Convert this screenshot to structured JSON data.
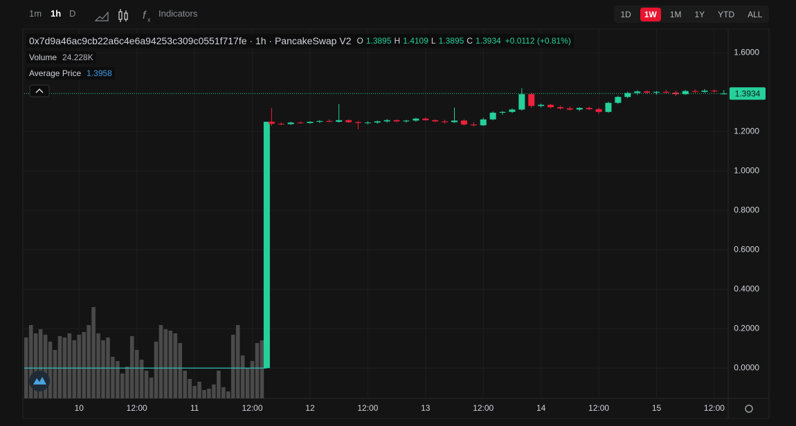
{
  "toolbar": {
    "intervals": [
      "1m",
      "1h",
      "D"
    ],
    "indicators": "Indicators",
    "ranges": [
      "1D",
      "1W",
      "1M",
      "1Y",
      "YTD",
      "ALL"
    ]
  },
  "chart_data": {
    "type": "candlestick",
    "title": "0x7d9a46ac9cb22a6c4e6a94253c309c0551f717fe · 1h · PancakeSwap V2",
    "ohlc_labels": [
      "O",
      "H",
      "L",
      "C"
    ],
    "change": "+0.0112 (+0.81%)",
    "volume_label": "Volume",
    "volume_text": "24.228K",
    "average_label": "Average Price",
    "average_price": 1.3958,
    "up_color": "#26d09b",
    "down_color": "#f0213b",
    "volume_color": "#4a4a4a",
    "line_color": "#2fbfbf",
    "xlim": [
      -11.4,
      134.6
    ],
    "xticks": [
      {
        "value": 0,
        "label": "10"
      },
      {
        "value": 12,
        "label": "12:00"
      },
      {
        "value": 24,
        "label": "11"
      },
      {
        "value": 36,
        "label": "12:00"
      },
      {
        "value": 48,
        "label": "12"
      },
      {
        "value": 60,
        "label": "12:00"
      },
      {
        "value": 72,
        "label": "13"
      },
      {
        "value": 84,
        "label": "12:00"
      },
      {
        "value": 96,
        "label": "14"
      },
      {
        "value": 108,
        "label": "12:00"
      },
      {
        "value": 120,
        "label": "15"
      },
      {
        "value": 132,
        "label": "12:00"
      }
    ],
    "ylim": [
      -0.15,
      1.71
    ],
    "yticks": [
      {
        "value": 0,
        "label": "0.0000"
      },
      {
        "value": 0.2,
        "label": "0.2000"
      },
      {
        "value": 0.4,
        "label": "0.4000"
      },
      {
        "value": 0.6,
        "label": "0.6000"
      },
      {
        "value": 0.8,
        "label": "0.8000"
      },
      {
        "value": 1,
        "label": "1.0000"
      },
      {
        "value": 1.2,
        "label": "1.2000"
      },
      {
        "value": 1.6,
        "label": "1.6000"
      }
    ],
    "grid": true,
    "line_x": [
      -11.4,
      39
    ],
    "line_values": [
      0,
      0
    ],
    "x": [
      39,
      40,
      42,
      44,
      46,
      48,
      50,
      52,
      54,
      56,
      58,
      60,
      62,
      64,
      66,
      68,
      70,
      72,
      74,
      76,
      78,
      80,
      82,
      84,
      86,
      88,
      90,
      92,
      94,
      96,
      98,
      100,
      102,
      104,
      106,
      108,
      110,
      112,
      114,
      116,
      118,
      120,
      122,
      124,
      126,
      128,
      130,
      132,
      134
    ],
    "open": [
      0,
      1.25,
      1.24,
      1.238,
      1.246,
      1.244,
      1.25,
      1.254,
      1.25,
      1.258,
      1.248,
      1.244,
      1.246,
      1.252,
      1.258,
      1.252,
      1.256,
      1.266,
      1.258,
      1.252,
      1.248,
      1.256,
      1.236,
      1.232,
      1.262,
      1.296,
      1.3,
      1.312,
      1.39,
      1.33,
      1.336,
      1.324,
      1.318,
      1.312,
      1.32,
      1.314,
      1.3,
      1.346,
      1.376,
      1.396,
      1.404,
      1.398,
      1.402,
      1.398,
      1.39,
      1.406,
      1.402,
      1.408,
      1.3895
    ],
    "high": [
      1.25,
      1.32,
      1.248,
      1.25,
      1.252,
      1.252,
      1.258,
      1.262,
      1.34,
      1.262,
      1.254,
      1.252,
      1.256,
      1.264,
      1.262,
      1.26,
      1.27,
      1.272,
      1.262,
      1.26,
      1.322,
      1.262,
      1.248,
      1.27,
      1.302,
      1.304,
      1.318,
      1.42,
      1.398,
      1.342,
      1.34,
      1.332,
      1.328,
      1.324,
      1.326,
      1.322,
      1.352,
      1.382,
      1.402,
      1.41,
      1.41,
      1.406,
      1.412,
      1.408,
      1.412,
      1.414,
      1.416,
      1.414,
      1.4109
    ],
    "low": [
      0,
      1.23,
      1.232,
      1.234,
      1.24,
      1.24,
      1.244,
      1.248,
      1.246,
      1.244,
      1.212,
      1.238,
      1.24,
      1.246,
      1.248,
      1.246,
      1.25,
      1.256,
      1.248,
      1.24,
      1.244,
      1.23,
      1.226,
      1.228,
      1.258,
      1.286,
      1.294,
      1.306,
      1.32,
      1.322,
      1.318,
      1.312,
      1.306,
      1.304,
      1.308,
      1.29,
      1.296,
      1.34,
      1.37,
      1.386,
      1.392,
      1.388,
      1.394,
      1.38,
      1.386,
      1.394,
      1.396,
      1.398,
      1.3895
    ],
    "close": [
      1.25,
      1.24,
      1.238,
      1.246,
      1.244,
      1.25,
      1.254,
      1.25,
      1.258,
      1.248,
      1.244,
      1.246,
      1.252,
      1.258,
      1.252,
      1.256,
      1.266,
      1.258,
      1.252,
      1.248,
      1.256,
      1.236,
      1.232,
      1.262,
      1.296,
      1.3,
      1.312,
      1.39,
      1.33,
      1.336,
      1.324,
      1.318,
      1.312,
      1.32,
      1.314,
      1.3,
      1.346,
      1.376,
      1.396,
      1.404,
      1.398,
      1.402,
      1.398,
      1.39,
      1.406,
      1.402,
      1.408,
      1.404,
      1.3934
    ],
    "volume_x": [
      -11,
      -10,
      -9,
      -8,
      -7,
      -6,
      -5,
      -4,
      -3,
      -2,
      -1,
      0,
      1,
      2,
      3,
      4,
      5,
      6,
      7,
      8,
      9,
      10,
      11,
      12,
      13,
      14,
      15,
      16,
      17,
      18,
      19,
      20,
      21,
      22,
      23,
      24,
      25,
      26,
      27,
      28,
      29,
      30,
      31,
      32,
      33,
      34,
      35,
      36,
      37,
      38
    ],
    "volume_values": [
      88,
      106,
      94,
      100,
      92,
      82,
      70,
      90,
      88,
      94,
      84,
      92,
      96,
      106,
      132,
      94,
      84,
      88,
      60,
      54,
      36,
      46,
      90,
      70,
      56,
      40,
      30,
      82,
      106,
      100,
      98,
      94,
      80,
      40,
      28,
      18,
      24,
      12,
      14,
      20,
      40,
      16,
      10,
      92,
      106,
      62,
      44,
      54,
      80,
      84
    ]
  }
}
